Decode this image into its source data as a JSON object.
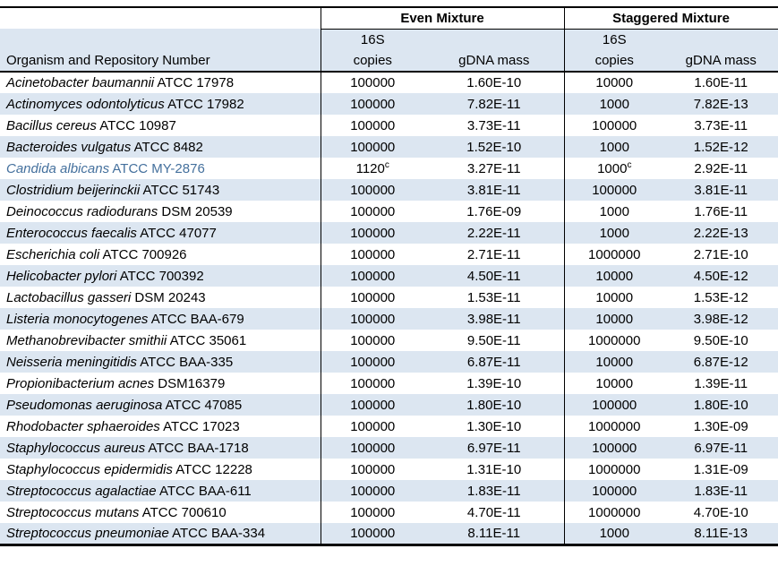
{
  "colors": {
    "stripe": "#dce6f1",
    "highlight_text": "#44709d"
  },
  "header": {
    "even_mixture": "Even Mixture",
    "staggered_mixture": "Staggered Mixture",
    "organism_col": "Organism and Repository Number",
    "sixteen_s": "16S",
    "copies": "copies",
    "gdna_mass": "gDNA mass"
  },
  "rows": [
    {
      "organism": "Acinetobacter baumannii",
      "repository": "ATCC 17978",
      "even_copies": "100000",
      "even_gdna": "1.60E-10",
      "stag_copies": "10000",
      "stag_gdna": "1.60E-11"
    },
    {
      "organism": "Actinomyces odontolyticus",
      "repository": "ATCC 17982",
      "even_copies": "100000",
      "even_gdna": "7.82E-11",
      "stag_copies": "1000",
      "stag_gdna": "7.82E-13"
    },
    {
      "organism": "Bacillus cereus",
      "repository": "ATCC 10987",
      "even_copies": "100000",
      "even_gdna": "3.73E-11",
      "stag_copies": "100000",
      "stag_gdna": "3.73E-11"
    },
    {
      "organism": "Bacteroides vulgatus",
      "repository": "ATCC 8482",
      "even_copies": "100000",
      "even_gdna": "1.52E-10",
      "stag_copies": "1000",
      "stag_gdna": "1.52E-12"
    },
    {
      "organism": "Candida albicans",
      "repository": "ATCC MY-2876",
      "even_copies": "1120",
      "even_copies_sup": "c",
      "even_gdna": "3.27E-11",
      "stag_copies": "1000",
      "stag_copies_sup": "c",
      "stag_gdna": "2.92E-11",
      "highlight": true
    },
    {
      "organism": "Clostridium beijerinckii",
      "repository": "ATCC 51743",
      "even_copies": "100000",
      "even_gdna": "3.81E-11",
      "stag_copies": "100000",
      "stag_gdna": "3.81E-11"
    },
    {
      "organism": "Deinococcus radiodurans",
      "repository": "DSM 20539",
      "even_copies": "100000",
      "even_gdna": "1.76E-09",
      "stag_copies": "1000",
      "stag_gdna": "1.76E-11"
    },
    {
      "organism": "Enterococcus faecalis",
      "repository": "ATCC 47077",
      "even_copies": "100000",
      "even_gdna": "2.22E-11",
      "stag_copies": "1000",
      "stag_gdna": "2.22E-13"
    },
    {
      "organism": "Escherichia coli",
      "repository": "ATCC 700926",
      "even_copies": "100000",
      "even_gdna": "2.71E-11",
      "stag_copies": "1000000",
      "stag_gdna": "2.71E-10"
    },
    {
      "organism": "Helicobacter pylori",
      "repository": "ATCC 700392",
      "even_copies": "100000",
      "even_gdna": "4.50E-11",
      "stag_copies": "10000",
      "stag_gdna": "4.50E-12"
    },
    {
      "organism": "Lactobacillus gasseri",
      "repository": "DSM 20243",
      "even_copies": "100000",
      "even_gdna": "1.53E-11",
      "stag_copies": "10000",
      "stag_gdna": "1.53E-12"
    },
    {
      "organism": "Listeria monocytogenes",
      "repository": "ATCC BAA-679",
      "even_copies": "100000",
      "even_gdna": "3.98E-11",
      "stag_copies": "10000",
      "stag_gdna": "3.98E-12"
    },
    {
      "organism": "Methanobrevibacter smithii",
      "repository": "ATCC 35061",
      "even_copies": "100000",
      "even_gdna": "9.50E-11",
      "stag_copies": "1000000",
      "stag_gdna": "9.50E-10"
    },
    {
      "organism": "Neisseria meningitidis",
      "repository": "ATCC BAA-335",
      "even_copies": "100000",
      "even_gdna": "6.87E-11",
      "stag_copies": "10000",
      "stag_gdna": "6.87E-12"
    },
    {
      "organism": "Propionibacterium acnes",
      "repository": "DSM16379",
      "even_copies": "100000",
      "even_gdna": "1.39E-10",
      "stag_copies": "10000",
      "stag_gdna": "1.39E-11"
    },
    {
      "organism": "Pseudomonas aeruginosa",
      "repository": "ATCC 47085",
      "even_copies": "100000",
      "even_gdna": "1.80E-10",
      "stag_copies": "100000",
      "stag_gdna": "1.80E-10"
    },
    {
      "organism": "Rhodobacter sphaeroides",
      "repository": "ATCC 17023",
      "even_copies": "100000",
      "even_gdna": "1.30E-10",
      "stag_copies": "1000000",
      "stag_gdna": "1.30E-09"
    },
    {
      "organism": "Staphylococcus aureus",
      "repository": "ATCC BAA-1718",
      "even_copies": "100000",
      "even_gdna": "6.97E-11",
      "stag_copies": "100000",
      "stag_gdna": "6.97E-11"
    },
    {
      "organism": "Staphylococcus epidermidis",
      "repository": "ATCC 12228",
      "even_copies": "100000",
      "even_gdna": "1.31E-10",
      "stag_copies": "1000000",
      "stag_gdna": "1.31E-09"
    },
    {
      "organism": "Streptococcus agalactiae",
      "repository": "ATCC BAA-611",
      "even_copies": "100000",
      "even_gdna": "1.83E-11",
      "stag_copies": "100000",
      "stag_gdna": "1.83E-11"
    },
    {
      "organism": "Streptococcus mutans",
      "repository": "ATCC 700610",
      "even_copies": "100000",
      "even_gdna": "4.70E-11",
      "stag_copies": "1000000",
      "stag_gdna": "4.70E-10"
    },
    {
      "organism": "Streptococcus pneumoniae",
      "repository": "ATCC BAA-334",
      "even_copies": "100000",
      "even_gdna": "8.11E-11",
      "stag_copies": "1000",
      "stag_gdna": "8.11E-13"
    }
  ]
}
